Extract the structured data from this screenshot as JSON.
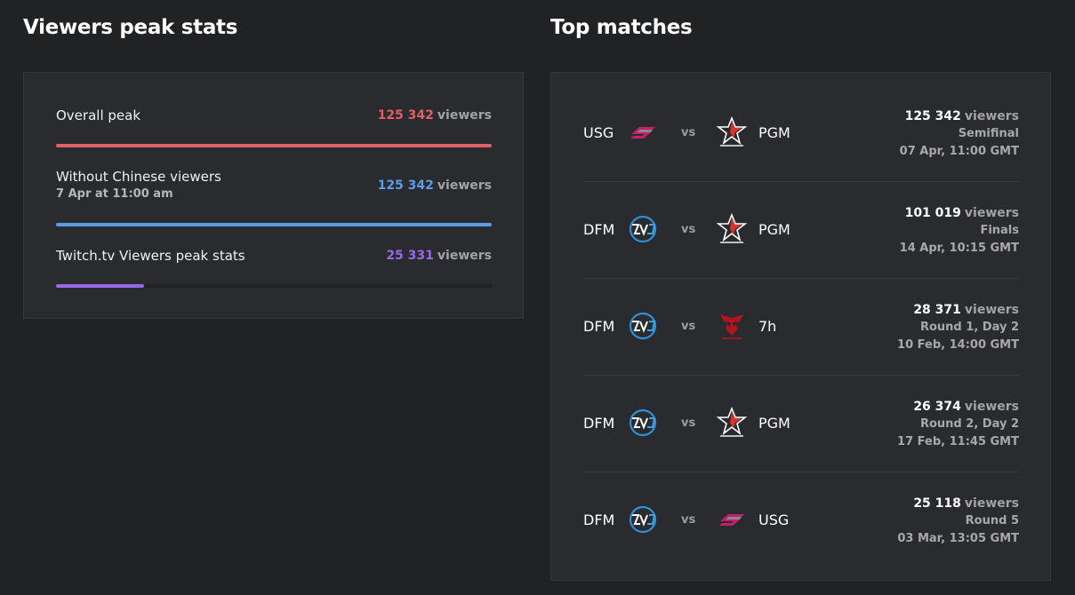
{
  "peak": {
    "title": "Viewers peak stats",
    "unit": "viewers",
    "stats": [
      {
        "label": "Overall peak",
        "sub": "",
        "value": "125 342",
        "color": "#e05f67",
        "fill": 1.0
      },
      {
        "label": "Without Chinese viewers",
        "sub": "7 Apr at 11:00 am",
        "value": "125 342",
        "color": "#5a9de4",
        "fill": 1.0
      },
      {
        "label": "Twitch.tv Viewers peak stats",
        "sub": "",
        "value": "25 331",
        "color": "#9a67e8",
        "fill": 0.202
      }
    ]
  },
  "matches": {
    "title": "Top matches",
    "vs_label": "vs",
    "unit": "viewers",
    "rows": [
      {
        "team1": "USG",
        "logo1": "usg-logo",
        "team2": "PGM",
        "logo2": "pentagram-logo",
        "viewers": "125 342",
        "stage": "Semifinal",
        "date": "07 Apr, 11:00 GMT"
      },
      {
        "team1": "DFM",
        "logo1": "dfm-logo",
        "team2": "PGM",
        "logo2": "pentagram-logo",
        "viewers": "101 019",
        "stage": "Finals",
        "date": "14 Apr, 10:15 GMT"
      },
      {
        "team1": "DFM",
        "logo1": "dfm-logo",
        "team2": "7h",
        "logo2": "7h-logo",
        "viewers": "28 371",
        "stage": "Round 1, Day 2",
        "date": "10 Feb, 14:00 GMT"
      },
      {
        "team1": "DFM",
        "logo1": "dfm-logo",
        "team2": "PGM",
        "logo2": "pentagram-logo",
        "viewers": "26 374",
        "stage": "Round 2, Day 2",
        "date": "17 Feb, 11:45 GMT"
      },
      {
        "team1": "DFM",
        "logo1": "dfm-logo",
        "team2": "USG",
        "logo2": "usg-logo",
        "viewers": "25 118",
        "stage": "Round 5",
        "date": "03 Mar, 13:05 GMT"
      }
    ]
  }
}
